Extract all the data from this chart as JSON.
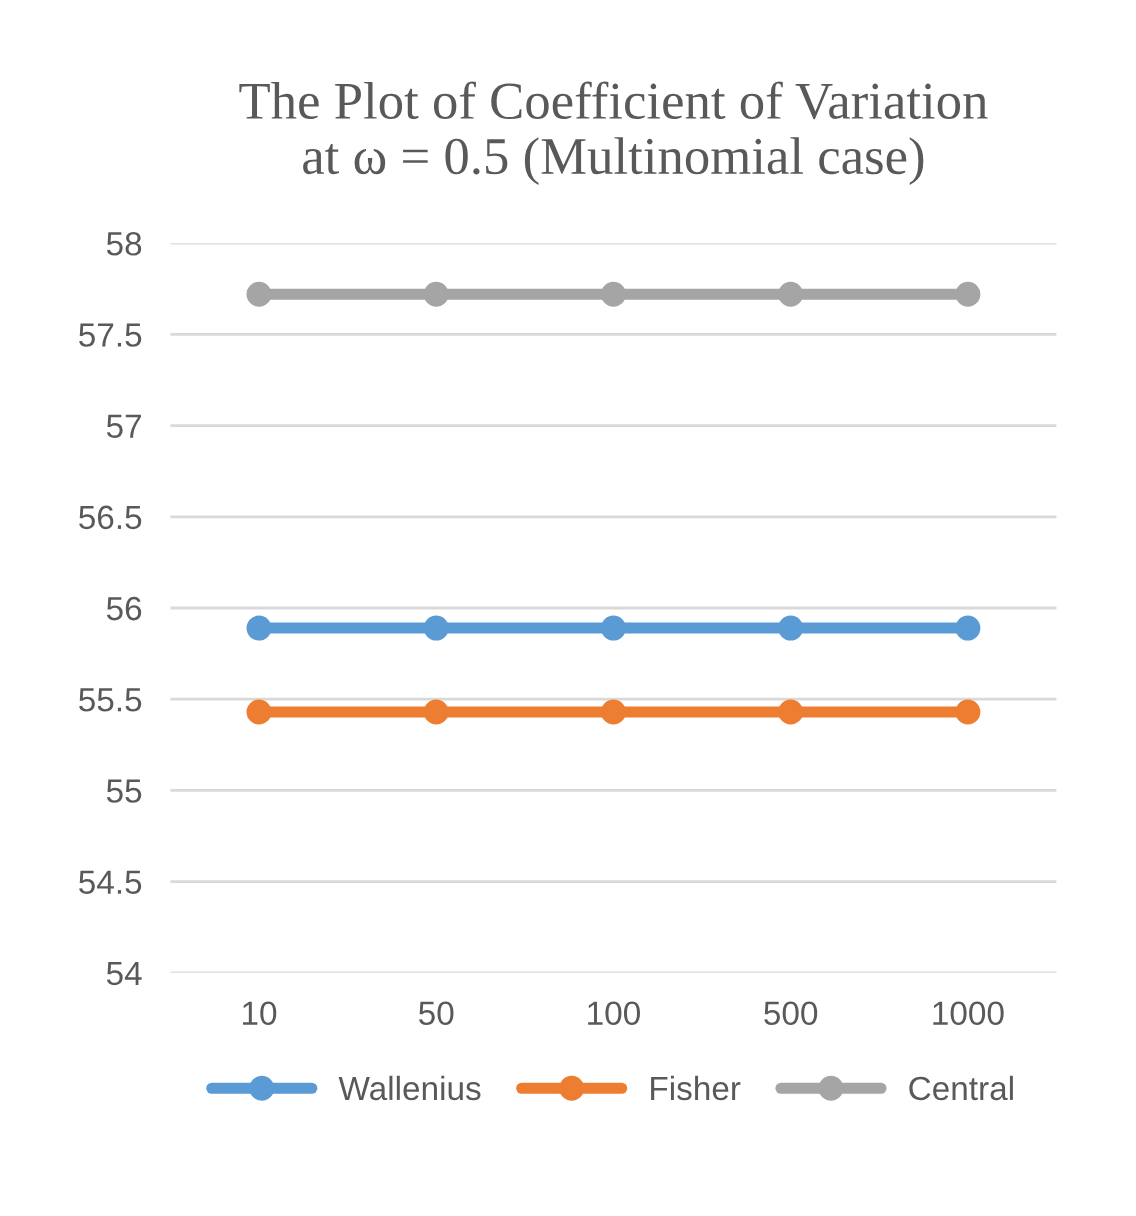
{
  "chart_data": {
    "type": "line",
    "title": "The Plot of Coefficient of Variation\nat ω = 0.5 (Multinomial case)",
    "categories": [
      "10",
      "50",
      "100",
      "500",
      "1000"
    ],
    "series": [
      {
        "name": "Wallenius",
        "color": "#5b9bd5",
        "values": [
          55.89,
          55.89,
          55.89,
          55.89,
          55.89
        ]
      },
      {
        "name": "Fisher",
        "color": "#ed7d31",
        "values": [
          55.43,
          55.43,
          55.43,
          55.43,
          55.43
        ]
      },
      {
        "name": "Central",
        "color": "#a5a5a5",
        "values": [
          57.72,
          57.72,
          57.72,
          57.72,
          57.72
        ]
      }
    ],
    "ylim": [
      54,
      58
    ],
    "yticks": [
      54,
      {
        "value": 54.5,
        "label": "54.5"
      },
      55,
      {
        "value": 55.5,
        "label": "55.5"
      },
      56,
      {
        "value": 56.5,
        "label": "56.5"
      },
      57,
      {
        "value": 57.5,
        "label": "57.5"
      },
      58
    ],
    "grid": "y",
    "legend": "bottom",
    "marker": "circle",
    "line_style": "solid"
  }
}
